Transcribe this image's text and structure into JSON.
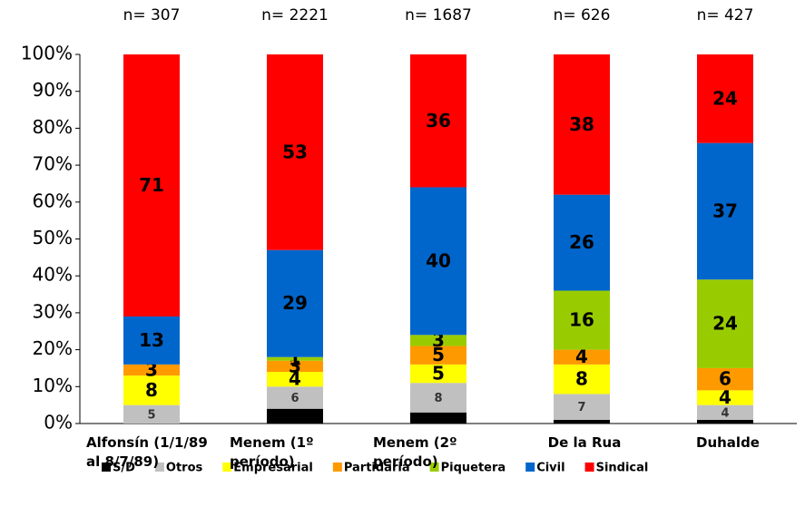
{
  "chart_data": {
    "type": "stacked_bar",
    "categories": [
      "Alfonsín (1/1/89 al 8/7/89)",
      "Menem (1º período)",
      "Menem (2º período)",
      "De la Rua",
      "Duhalde"
    ],
    "annotations": [
      "n= 307",
      "n= 2221",
      "n= 1687",
      "n= 626",
      "n= 427"
    ],
    "series": [
      {
        "name": "S/D",
        "color": "#000000",
        "values": [
          0,
          4,
          3,
          1,
          1
        ],
        "value_labels": [
          null,
          null,
          null,
          null,
          null
        ]
      },
      {
        "name": "Otros",
        "color": "#c0c0c0",
        "values": [
          5,
          6,
          8,
          7,
          4
        ],
        "value_labels": [
          "5",
          "6",
          "8",
          "7",
          "4"
        ]
      },
      {
        "name": "Empresarial",
        "color": "#ffff00",
        "values": [
          8,
          4,
          5,
          8,
          4
        ],
        "value_labels": [
          "8",
          "4",
          "5",
          "8",
          "4"
        ]
      },
      {
        "name": "Partidaria",
        "color": "#ff9900",
        "values": [
          3,
          3,
          5,
          4,
          6
        ],
        "value_labels": [
          "3",
          "3",
          "5",
          "4",
          "6"
        ]
      },
      {
        "name": "Piquetera",
        "color": "#99cc00",
        "values": [
          0,
          1,
          3,
          16,
          24
        ],
        "value_labels": [
          null,
          "1",
          "3",
          "16",
          "24"
        ]
      },
      {
        "name": "Civil",
        "color": "#0066cc",
        "values": [
          13,
          29,
          40,
          26,
          37
        ],
        "value_labels": [
          "13",
          "29",
          "40",
          "26",
          "37"
        ]
      },
      {
        "name": "Sindical",
        "color": "#ff0000",
        "values": [
          71,
          53,
          36,
          38,
          24
        ],
        "value_labels": [
          "71",
          "53",
          "36",
          "38",
          "24"
        ]
      }
    ],
    "ylim": [
      0,
      100
    ],
    "yticks": [
      {
        "value": 0,
        "label": "0%"
      },
      {
        "value": 10,
        "label": "10%"
      },
      {
        "value": 20,
        "label": "20%"
      },
      {
        "value": 30,
        "label": "30%"
      },
      {
        "value": 40,
        "label": "40%"
      },
      {
        "value": 50,
        "label": "50%"
      },
      {
        "value": 60,
        "label": "60%"
      },
      {
        "value": 70,
        "label": "70%"
      },
      {
        "value": 80,
        "label": "80%"
      },
      {
        "value": 90,
        "label": "90%"
      },
      {
        "value": 100,
        "label": "100%"
      }
    ],
    "legend": "bottom"
  }
}
